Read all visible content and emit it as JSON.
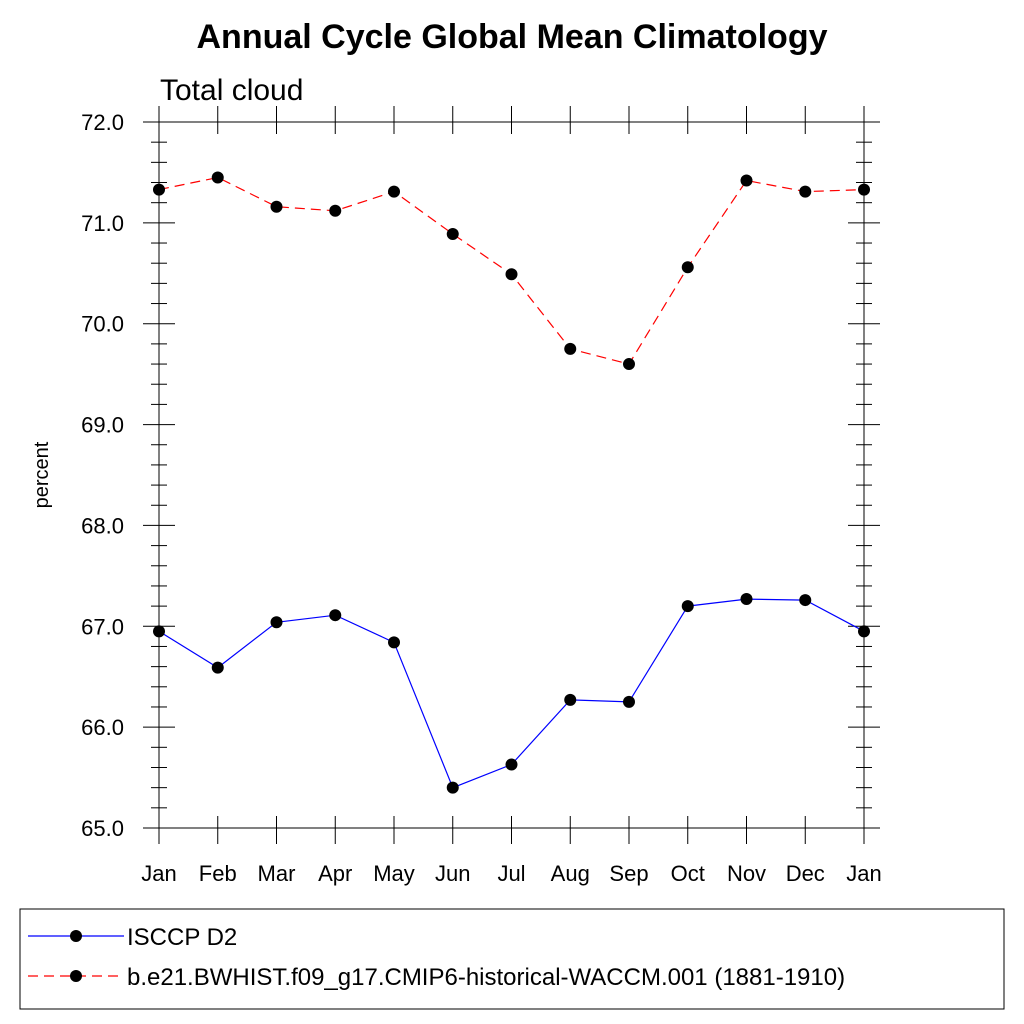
{
  "chart_data": {
    "type": "line",
    "title": "Annual Cycle Global Mean Climatology",
    "subtitle": "Total cloud",
    "xlabel": "",
    "ylabel": "percent",
    "categories": [
      "Jan",
      "Feb",
      "Mar",
      "Apr",
      "May",
      "Jun",
      "Jul",
      "Aug",
      "Sep",
      "Oct",
      "Nov",
      "Dec",
      "Jan"
    ],
    "ylim": [
      65.0,
      72.0
    ],
    "yticks": [
      "65.0",
      "66.0",
      "67.0",
      "68.0",
      "69.0",
      "70.0",
      "71.0",
      "72.0"
    ],
    "grid": false,
    "legend_position": "bottom",
    "series": [
      {
        "name": "ISCCP D2",
        "color": "#0000ff",
        "dashed": false,
        "values": [
          66.95,
          66.59,
          67.04,
          67.11,
          66.84,
          65.4,
          65.63,
          66.27,
          66.25,
          67.2,
          67.27,
          67.26,
          66.95
        ]
      },
      {
        "name": "b.e21.BWHIST.f09_g17.CMIP6-historical-WACCM.001 (1881-1910)",
        "color": "#ff0000",
        "dashed": true,
        "values": [
          71.33,
          71.45,
          71.16,
          71.12,
          71.31,
          70.89,
          70.49,
          69.75,
          69.6,
          70.56,
          71.42,
          71.31,
          71.33
        ]
      }
    ]
  }
}
